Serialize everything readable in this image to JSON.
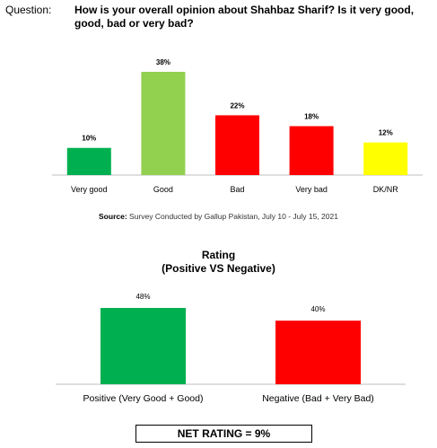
{
  "question": {
    "label": "Question:",
    "text_line1": "How is your overall opinion about Shahbaz Sharif? Is it very good,",
    "text_line2": "good, bad or very bad?"
  },
  "chart_data": [
    {
      "type": "bar",
      "categories": [
        "Very good",
        "Good",
        "Bad",
        "Very bad",
        "DK/NR"
      ],
      "values": [
        10,
        38,
        22,
        18,
        12
      ],
      "value_labels": [
        "10%",
        "38%",
        "22%",
        "18%",
        "12%"
      ],
      "colors": [
        "#00b050",
        "#92d050",
        "#ff0000",
        "#ff0000",
        "#ffff00"
      ],
      "ylim": [
        0,
        38
      ],
      "grid": false
    },
    {
      "type": "bar",
      "title_line1": "Rating",
      "title_line2": "(Positive VS Negative)",
      "categories": [
        "Positive (Very Good + Good)",
        "Negative (Bad + Very Bad)"
      ],
      "values": [
        48,
        40
      ],
      "value_labels": [
        "48%",
        "40%"
      ],
      "colors": [
        "#00b050",
        "#ff0000"
      ],
      "ylim": [
        0,
        48
      ],
      "grid": false
    }
  ],
  "source": {
    "label": "Source:",
    "text": " Survey Conducted by Gallup Pakistan, July 10 - July 15, 2021"
  },
  "net_rating": "NET RATING = 9%"
}
